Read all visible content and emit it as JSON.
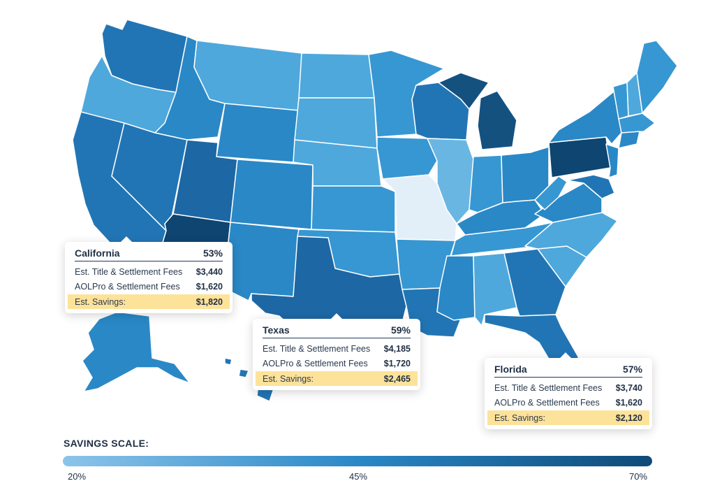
{
  "colors": {
    "missouri": "#e3eff8",
    "c20s": "#69b6e2",
    "c30s": "#4ea8dc",
    "c40s": "#3797d2",
    "c50s": "#2a88c6",
    "c55s": "#2275b4",
    "c60s": "#1d67a4",
    "c65s": "#14517f",
    "c70s": "#0e4571",
    "savings_highlight": "#fde29a",
    "scale_start": "#8cc4ea",
    "scale_end": "#0f4a78"
  },
  "callouts": {
    "california": {
      "state": "California",
      "percent": "53%",
      "title_fees_label": "Est. Title & Settlement Fees",
      "title_fees_value": "$3,440",
      "aolpro_label": "AOLPro & Settlement Fees",
      "aolpro_value": "$1,620",
      "savings_label": "Est. Savings:",
      "savings_value": "$1,820"
    },
    "texas": {
      "state": "Texas",
      "percent": "59%",
      "title_fees_label": "Est. Title & Settlement Fees",
      "title_fees_value": "$4,185",
      "aolpro_label": "AOLPro & Settlement Fees",
      "aolpro_value": "$1,720",
      "savings_label": "Est. Savings:",
      "savings_value": "$2,465"
    },
    "florida": {
      "state": "Florida",
      "percent": "57%",
      "title_fees_label": "Est. Title & Settlement Fees",
      "title_fees_value": "$3,740",
      "aolpro_label": "AOLPro & Settlement Fees",
      "aolpro_value": "$1,620",
      "savings_label": "Est. Savings:",
      "savings_value": "$2,120"
    }
  },
  "scale": {
    "title": "SAVINGS SCALE:",
    "min_label": "20%",
    "mid_label": "45%",
    "max_label": "70%"
  }
}
